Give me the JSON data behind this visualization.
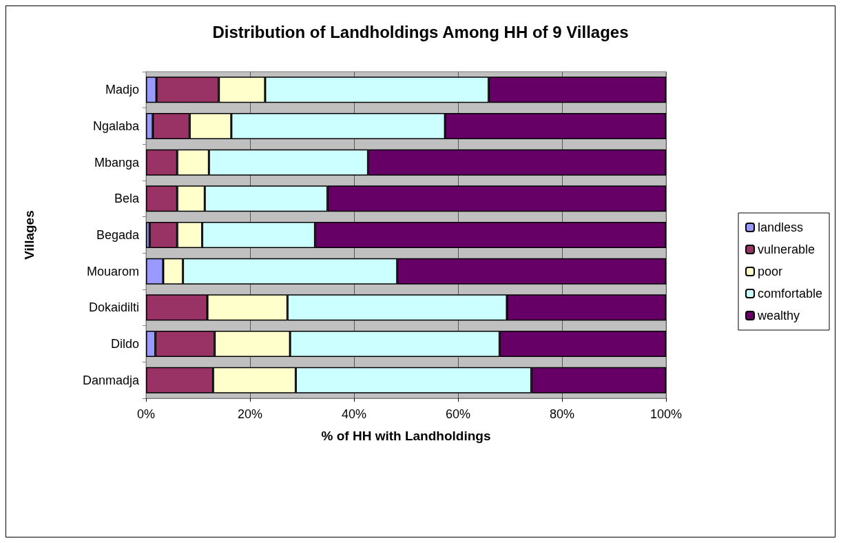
{
  "chart_data": {
    "type": "bar",
    "orientation": "horizontal",
    "stacked": true,
    "title": "Distribution of Landholdings Among HH of 9 Villages",
    "xlabel": "% of HH with Landholdings",
    "ylabel": "Villages",
    "categories": [
      "Madjo",
      "Ngalaba",
      "Mbanga",
      "Bela",
      "Begada",
      "Mouarom",
      "Dokaidilti",
      "Dildo",
      "Danmadja"
    ],
    "series": [
      {
        "name": "landless",
        "color": "#9999ff",
        "values": [
          2.0,
          1.3,
          0,
          0,
          0.7,
          3.3,
          0,
          1.8,
          0
        ]
      },
      {
        "name": "vulnerable",
        "color": "#993366",
        "values": [
          12.0,
          7.1,
          6.0,
          6.0,
          5.3,
          0,
          11.8,
          11.4,
          12.9
        ]
      },
      {
        "name": "poor",
        "color": "#ffffcc",
        "values": [
          8.9,
          8.0,
          6.1,
          5.3,
          4.8,
          3.8,
          15.4,
          14.5,
          15.9
        ]
      },
      {
        "name": "comfortable",
        "color": "#ccffff",
        "values": [
          43.0,
          41.1,
          30.6,
          23.6,
          21.7,
          41.2,
          42.2,
          40.3,
          45.3
        ]
      },
      {
        "name": "wealthy",
        "color": "#660066",
        "values": [
          34.1,
          42.5,
          57.3,
          65.1,
          67.5,
          51.7,
          30.6,
          32.0,
          25.9
        ]
      }
    ],
    "xlim": [
      0,
      100
    ],
    "xticks": [
      {
        "value": 0,
        "label": "0%"
      },
      {
        "value": 20,
        "label": "20%"
      },
      {
        "value": 40,
        "label": "40%"
      },
      {
        "value": 60,
        "label": "60%"
      },
      {
        "value": 80,
        "label": "80%"
      },
      {
        "value": 100,
        "label": "100%"
      }
    ],
    "grid": "x",
    "legend": "right"
  }
}
